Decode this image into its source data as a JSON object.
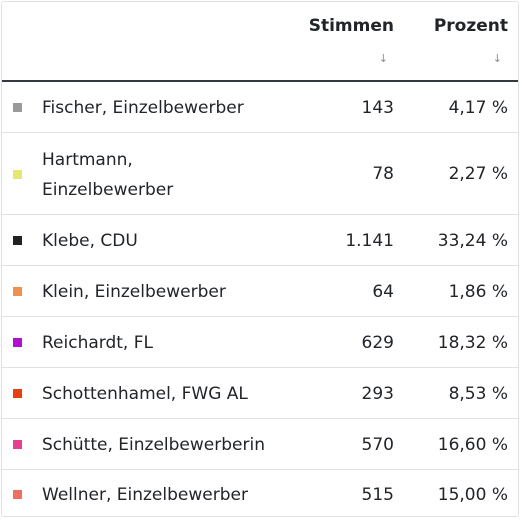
{
  "header": {
    "votes_label": "Stimmen",
    "percent_label": "Prozent",
    "sort_votes_icon": "↓",
    "sort_percent_icon": "↓"
  },
  "rows": [
    {
      "name": "Fischer, Einzelbewerber",
      "votes": "143",
      "percent": "4,17 %",
      "color": "#9a9a9a"
    },
    {
      "name_line1": "Hartmann,",
      "name_line2": "Einzelbewerber",
      "votes": "78",
      "percent": "2,27 %",
      "color": "#e6e670"
    },
    {
      "name": "Klebe, CDU",
      "votes": "1.141",
      "percent": "33,24 %",
      "color": "#222222"
    },
    {
      "name": "Klein, Einzelbewerber",
      "votes": "64",
      "percent": "1,86 %",
      "color": "#f09050"
    },
    {
      "name": "Reichardt, FL",
      "votes": "629",
      "percent": "18,32 %",
      "color": "#b010d0"
    },
    {
      "name": "Schottenhamel, FWG AL",
      "votes": "293",
      "percent": "8,53 %",
      "color": "#e84010"
    },
    {
      "name": "Schütte, Einzelbewerberin",
      "votes": "570",
      "percent": "16,60 %",
      "color": "#e84090"
    },
    {
      "name": "Wellner, Einzelbewerber",
      "votes": "515",
      "percent": "15,00 %",
      "color": "#f07060"
    }
  ]
}
